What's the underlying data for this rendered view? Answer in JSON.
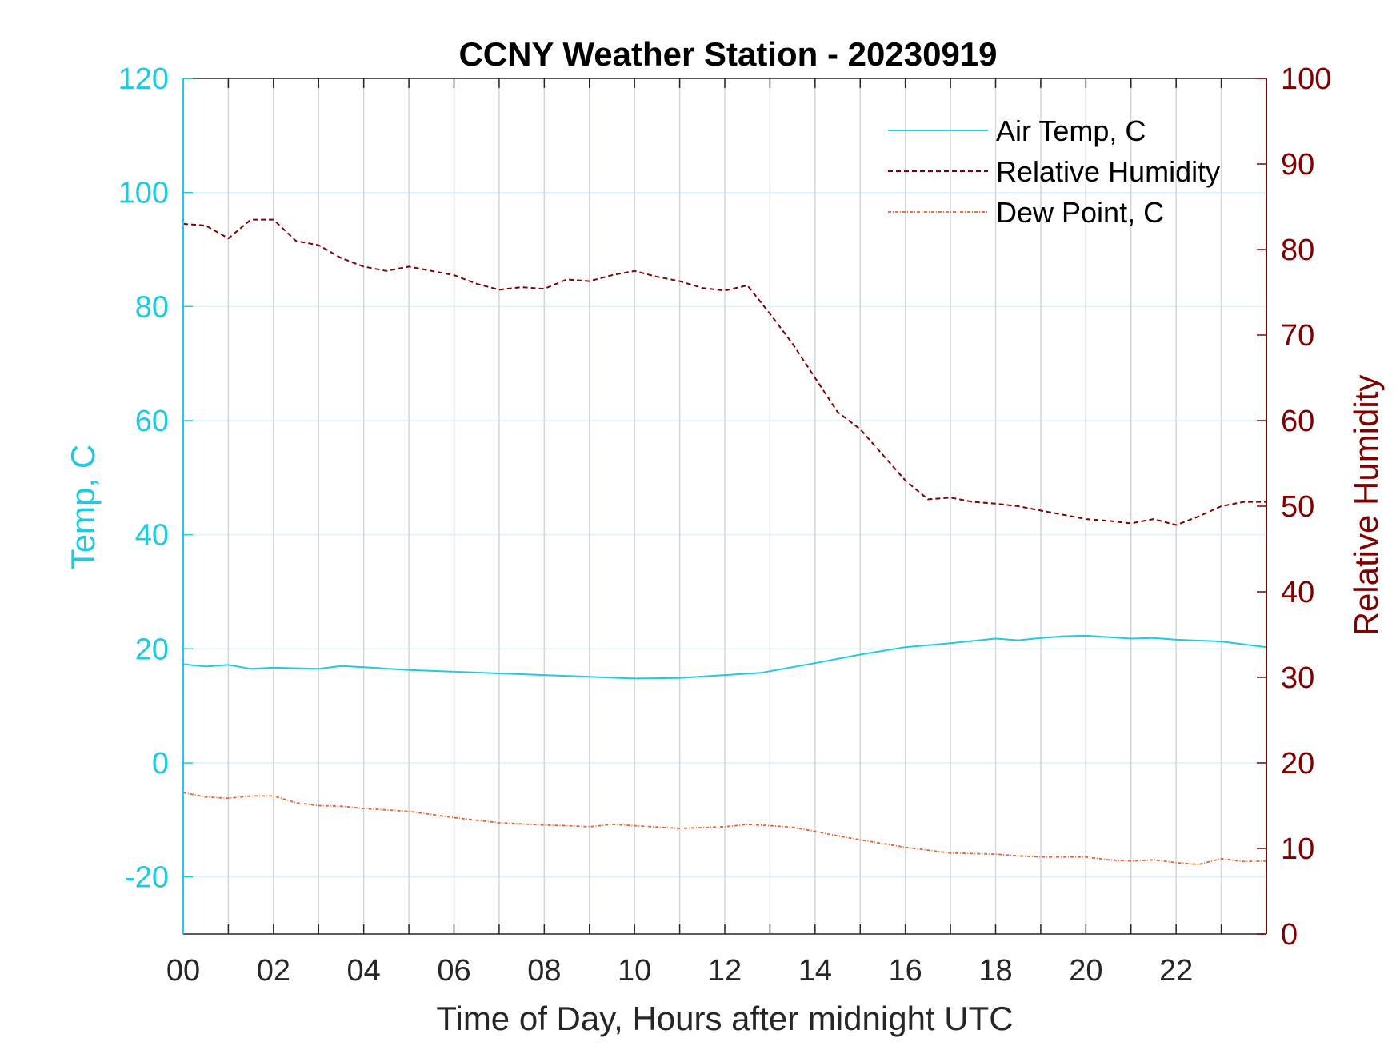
{
  "chart_data": {
    "type": "line",
    "title": "CCNY Weather Station - 20230919",
    "xlabel": "Time of Day, Hours after midnight UTC",
    "ylabel_left": "Temp, C",
    "ylabel_right": "Relative Humidity",
    "xlim": [
      0,
      24
    ],
    "ylim_left": [
      -30,
      120
    ],
    "ylim_right": [
      0,
      100
    ],
    "x_ticks": [
      0,
      2,
      4,
      6,
      8,
      10,
      12,
      14,
      16,
      18,
      20,
      22
    ],
    "x_tick_labels": [
      "00",
      "02",
      "04",
      "06",
      "08",
      "10",
      "12",
      "14",
      "16",
      "18",
      "20",
      "22"
    ],
    "y_left_ticks": [
      -20,
      0,
      20,
      40,
      60,
      80,
      100,
      120
    ],
    "y_left_tick_labels": [
      "-20",
      "0",
      "20",
      "40",
      "60",
      "80",
      "100",
      "120"
    ],
    "y_right_ticks": [
      0,
      10,
      20,
      30,
      40,
      50,
      60,
      70,
      80,
      90,
      100
    ],
    "y_right_tick_labels": [
      "0",
      "10",
      "20",
      "30",
      "40",
      "50",
      "60",
      "70",
      "80",
      "90",
      "100"
    ],
    "grid": true,
    "legend_position": "top-right",
    "colors": {
      "left_axis": "#1ecbe1",
      "right_axis": "#800000",
      "dew_point": "#e8612c",
      "vertical_grid": "#d0d7de",
      "horizontal_grid": "#d6f4fa",
      "axis": "#262626"
    },
    "series": [
      {
        "name": "Air Temp, C",
        "axis": "left",
        "style": "solid",
        "color": "#1ecbe1",
        "x": [
          0,
          0.5,
          1,
          1.5,
          2,
          3,
          3.5,
          4,
          5,
          6,
          7,
          8,
          9,
          10,
          11,
          12,
          12.8,
          13.5,
          14,
          15,
          16,
          17,
          18,
          18.5,
          19,
          19.5,
          20,
          21,
          21.5,
          22,
          23,
          24
        ],
        "y": [
          17.3,
          16.9,
          17.2,
          16.5,
          16.7,
          16.5,
          17.0,
          16.8,
          16.3,
          16.0,
          15.7,
          15.4,
          15.1,
          14.8,
          14.9,
          15.4,
          15.8,
          16.8,
          17.5,
          19.0,
          20.3,
          21.0,
          21.8,
          21.5,
          21.9,
          22.2,
          22.3,
          21.8,
          21.9,
          21.6,
          21.3,
          20.3
        ]
      },
      {
        "name": "Relative Humidity",
        "axis": "right",
        "style": "dashed",
        "color": "#800000",
        "x": [
          0,
          0.5,
          1,
          1.5,
          2,
          2.5,
          3,
          3.5,
          4,
          4.5,
          5,
          5.5,
          6,
          6.5,
          7,
          7.5,
          8,
          8.5,
          9,
          9.5,
          10,
          10.5,
          11,
          11.5,
          12,
          12.5,
          13,
          13.5,
          14,
          14.5,
          15,
          15.5,
          16,
          16.5,
          17,
          17.5,
          18,
          18.5,
          19,
          19.5,
          20,
          20.5,
          21,
          21.5,
          22,
          22.5,
          23,
          23.5,
          24
        ],
        "y": [
          83,
          82.8,
          81.3,
          83.5,
          83.5,
          81,
          80.5,
          79,
          78,
          77.5,
          78,
          77.5,
          77,
          76,
          75.3,
          75.6,
          75.4,
          76.5,
          76.3,
          77,
          77.5,
          76.8,
          76.3,
          75.5,
          75.2,
          75.8,
          72.5,
          69,
          65,
          61,
          59,
          56,
          53,
          50.8,
          51,
          50.5,
          50.3,
          50,
          49.5,
          49,
          48.5,
          48.3,
          48,
          48.5,
          47.8,
          48.8,
          50,
          50.5,
          50.5
        ]
      },
      {
        "name": "Dew Point, C",
        "axis": "left",
        "style": "dashdot",
        "color": "#e8612c",
        "x": [
          0,
          0.5,
          1,
          1.5,
          2,
          2.5,
          3,
          3.5,
          4,
          5,
          6,
          7,
          8,
          8.5,
          9,
          9.5,
          10,
          11,
          12,
          12.5,
          13,
          13.5,
          14,
          14.5,
          15,
          16,
          17,
          18,
          18.5,
          19,
          20,
          20.5,
          21,
          21.5,
          22,
          22.5,
          23,
          23.5,
          24
        ],
        "y": [
          -5.2,
          -6.0,
          -6.2,
          -5.8,
          -5.8,
          -7.0,
          -7.5,
          -7.6,
          -8.0,
          -8.5,
          -9.6,
          -10.5,
          -10.9,
          -11.0,
          -11.2,
          -10.8,
          -11.0,
          -11.5,
          -11.2,
          -10.8,
          -11.0,
          -11.3,
          -12.0,
          -12.8,
          -13.5,
          -14.8,
          -15.8,
          -16.0,
          -16.3,
          -16.5,
          -16.5,
          -17.0,
          -17.2,
          -17.0,
          -17.5,
          -17.8,
          -16.8,
          -17.3,
          -17.2
        ]
      }
    ]
  }
}
